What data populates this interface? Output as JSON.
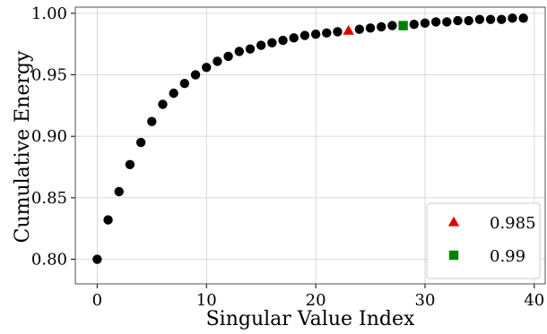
{
  "chart_data": {
    "type": "scatter",
    "xlabel": "Singular Value Index",
    "ylabel": "Cumulative Energy",
    "xlim": [
      -2,
      41
    ],
    "ylim": [
      0.78,
      1.005
    ],
    "xticks": [
      0,
      10,
      20,
      30,
      40
    ],
    "xtick_labels": [
      "0",
      "10",
      "20",
      "30",
      "40"
    ],
    "yticks": [
      0.8,
      0.85,
      0.9,
      0.95,
      1.0
    ],
    "ytick_labels": [
      "0.80",
      "0.85",
      "0.90",
      "0.95",
      "1.00"
    ],
    "grid": true,
    "legend_position": "lower-right",
    "series": [
      {
        "marker": "circle",
        "color": "#000000",
        "x": [
          0,
          1,
          2,
          3,
          4,
          5,
          6,
          7,
          8,
          9,
          10,
          11,
          12,
          13,
          14,
          15,
          16,
          17,
          18,
          19,
          20,
          21,
          22,
          24,
          25,
          26,
          27,
          29,
          30,
          31,
          32,
          33,
          34,
          35,
          36,
          37,
          38,
          39
        ],
        "y": [
          0.8,
          0.832,
          0.855,
          0.877,
          0.895,
          0.912,
          0.926,
          0.935,
          0.943,
          0.95,
          0.956,
          0.961,
          0.965,
          0.969,
          0.971,
          0.974,
          0.976,
          0.978,
          0.98,
          0.982,
          0.983,
          0.984,
          0.985,
          0.987,
          0.988,
          0.989,
          0.99,
          0.991,
          0.992,
          0.993,
          0.993,
          0.994,
          0.994,
          0.995,
          0.995,
          0.995,
          0.996,
          0.996
        ]
      },
      {
        "name": "0.985",
        "marker": "triangle",
        "color": "#e00000",
        "x": [
          23
        ],
        "y": [
          0.986
        ]
      },
      {
        "name": "0.99",
        "marker": "square",
        "color": "#008000",
        "x": [
          28
        ],
        "y": [
          0.99
        ]
      }
    ]
  }
}
